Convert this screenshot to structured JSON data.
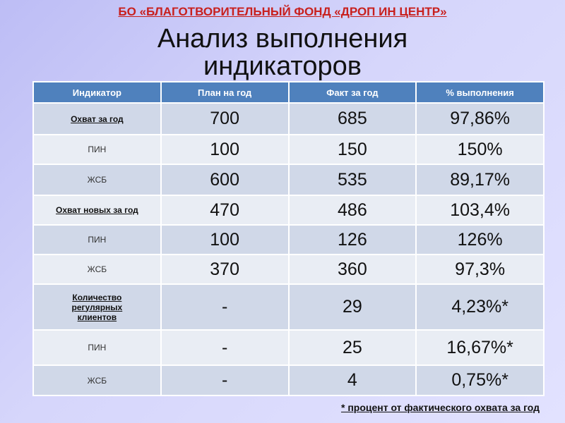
{
  "org": "БО «БЛАГОТВОРИТЕЛЬНЫЙ ФОНД «ДРОП ИН ЦЕНТР»",
  "title_line1": "Анализ выполнения",
  "title_line2": "индикаторов",
  "table": {
    "headers": [
      "Индикатор",
      "План на год",
      "Факт за год",
      "% выполнения"
    ],
    "rows": [
      {
        "label": "Охват за год",
        "bold": true,
        "cells": [
          "700",
          "685",
          "97,86%"
        ]
      },
      {
        "label": "ПИН",
        "bold": false,
        "cells": [
          "100",
          "150",
          "150%"
        ]
      },
      {
        "label": "ЖСБ",
        "bold": false,
        "cells": [
          "600",
          "535",
          "89,17%"
        ]
      },
      {
        "label": "Охват новых за год",
        "bold": true,
        "cells": [
          "470",
          "486",
          "103,4%"
        ]
      },
      {
        "label": "ПИН",
        "bold": false,
        "cells": [
          "100",
          "126",
          "126%"
        ]
      },
      {
        "label": "ЖСБ",
        "bold": false,
        "cells": [
          "370",
          "360",
          "97,3%"
        ]
      },
      {
        "label": "Количество регулярных клиентов",
        "bold": true,
        "cells": [
          "-",
          "29",
          "4,23%*"
        ]
      },
      {
        "label": "ПИН",
        "bold": false,
        "cells": [
          "-",
          "25",
          "16,67%*"
        ]
      },
      {
        "label": "ЖСБ",
        "bold": false,
        "cells": [
          "-",
          "4",
          "0,75%*"
        ]
      }
    ]
  },
  "footnote": "* процент от фактического охвата за год",
  "colors": {
    "header": "#4f81bd",
    "row_dark": "#d0d8e8",
    "row_light": "#e9edf4",
    "org": "#c8201e"
  }
}
